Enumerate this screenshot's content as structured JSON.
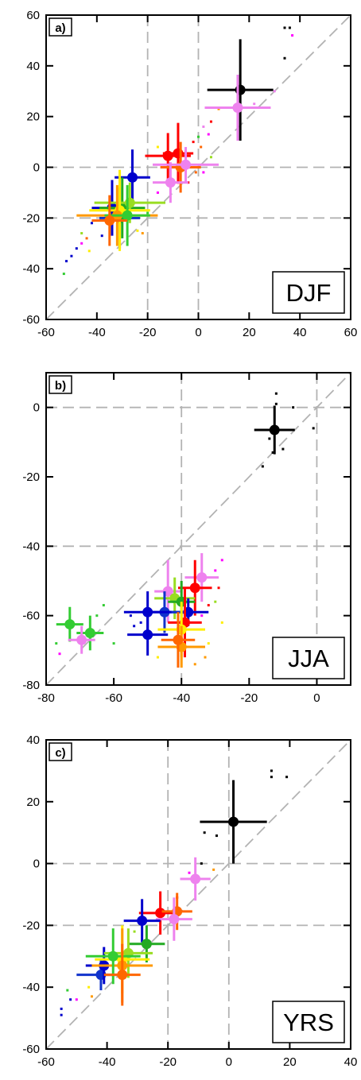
{
  "chart_data": [
    {
      "type": "scatter",
      "panel_label": "a)",
      "season": "DJF",
      "xlim": [
        -60,
        60
      ],
      "ylim": [
        -60,
        60
      ],
      "xticks": [
        -60,
        -40,
        -20,
        0,
        20,
        40,
        60
      ],
      "yticks": [
        -60,
        -40,
        -20,
        0,
        20,
        40,
        60
      ],
      "xtick_labels": [
        "-60",
        "-40",
        "-20",
        "0",
        "20",
        "40",
        "60"
      ],
      "ytick_labels": [
        "-60",
        "-40",
        "-20",
        "0",
        "20",
        "40",
        "60"
      ],
      "ref_x": [
        -20,
        0
      ],
      "ref_y": [
        -20,
        0
      ],
      "one_to_one_line": true,
      "means": [
        {
          "color": "#000000",
          "x": 16.5,
          "y": 30.5,
          "xerr": 13,
          "yerr": 20
        },
        {
          "color": "#ee82ee",
          "x": 15.5,
          "y": 23.5,
          "xerr": 13,
          "yerr": 13
        },
        {
          "color": "#ff0000",
          "x": -12,
          "y": 4.5,
          "xerr": 9,
          "yerr": 9
        },
        {
          "color": "#ff0000",
          "x": -8,
          "y": 5.5,
          "xerr": 6,
          "yerr": 12
        },
        {
          "color": "#ff6600",
          "x": -7,
          "y": 0,
          "xerr": 8,
          "yerr": 10
        },
        {
          "color": "#ee82ee",
          "x": -5,
          "y": 1,
          "xerr": 13,
          "yerr": 7
        },
        {
          "color": "#ee82ee",
          "x": -11,
          "y": -6,
          "xerr": 7,
          "yerr": 8
        },
        {
          "color": "#0000cc",
          "x": -26,
          "y": -4,
          "xerr": 7,
          "yerr": 11
        },
        {
          "color": "#0000cc",
          "x": -34,
          "y": -16,
          "xerr": 8,
          "yerr": 11
        },
        {
          "color": "#1133cc",
          "x": -31,
          "y": -20,
          "xerr": 8,
          "yerr": 12
        },
        {
          "color": "#22aa22",
          "x": -30,
          "y": -16,
          "xerr": 9,
          "yerr": 12
        },
        {
          "color": "#99dd22",
          "x": -27,
          "y": -14,
          "xerr": 14,
          "yerr": 8
        },
        {
          "color": "#ffee00",
          "x": -31,
          "y": -17,
          "xerr": 12,
          "yerr": 16
        },
        {
          "color": "#ff9900",
          "x": -32,
          "y": -19,
          "xerr": 16,
          "yerr": 12
        },
        {
          "color": "#33cc33",
          "x": -28,
          "y": -19,
          "xerr": 9,
          "yerr": 12
        },
        {
          "color": "#ff6600",
          "x": -35,
          "y": -21,
          "xerr": 7,
          "yerr": 10
        }
      ],
      "points": [
        {
          "color": "#000000",
          "x": 34,
          "y": 55
        },
        {
          "color": "#000000",
          "x": 36,
          "y": 55
        },
        {
          "color": "#000000",
          "x": 34,
          "y": 43
        },
        {
          "color": "#ff00ff",
          "x": 37,
          "y": 52
        },
        {
          "color": "#ee82ee",
          "x": 30,
          "y": 30
        },
        {
          "color": "#ee82ee",
          "x": 22,
          "y": 25
        },
        {
          "color": "#ff9900",
          "x": 8,
          "y": 23
        },
        {
          "color": "#ff0000",
          "x": 5,
          "y": 18
        },
        {
          "color": "#ee82ee",
          "x": 2,
          "y": 16
        },
        {
          "color": "#ff00ff",
          "x": 4,
          "y": 13
        },
        {
          "color": "#33cc33",
          "x": 0,
          "y": 12
        },
        {
          "color": "#ff6600",
          "x": 1,
          "y": 8
        },
        {
          "color": "#ff0000",
          "x": -2,
          "y": 10
        },
        {
          "color": "#99dd22",
          "x": 5,
          "y": 4
        },
        {
          "color": "#ffee00",
          "x": -16,
          "y": 8
        },
        {
          "color": "#ff00ff",
          "x": 2,
          "y": -2
        },
        {
          "color": "#0000cc",
          "x": -48,
          "y": -32
        },
        {
          "color": "#0000cc",
          "x": -52,
          "y": -37
        },
        {
          "color": "#33cc33",
          "x": -53,
          "y": -42
        },
        {
          "color": "#0000cc",
          "x": -50,
          "y": -35
        },
        {
          "color": "#ff00ff",
          "x": -46,
          "y": -30
        },
        {
          "color": "#ffee00",
          "x": -43,
          "y": -33
        },
        {
          "color": "#99dd22",
          "x": -46,
          "y": -26
        },
        {
          "color": "#ff6600",
          "x": -44,
          "y": -28
        },
        {
          "color": "#0000cc",
          "x": -42,
          "y": -22
        },
        {
          "color": "#ffee00",
          "x": -24,
          "y": -25
        },
        {
          "color": "#33cc33",
          "x": -20,
          "y": -18
        },
        {
          "color": "#ff9900",
          "x": -22,
          "y": -26
        },
        {
          "color": "#ff00ff",
          "x": -16,
          "y": -10
        },
        {
          "color": "#ff0000",
          "x": -4,
          "y": -6
        },
        {
          "color": "#ff6600",
          "x": -1,
          "y": -2
        },
        {
          "color": "#0000cc",
          "x": -38,
          "y": -27
        }
      ]
    },
    {
      "type": "scatter",
      "panel_label": "b)",
      "season": "JJA",
      "xlim": [
        -80,
        10
      ],
      "ylim": [
        -80,
        10
      ],
      "xticks": [
        -80,
        -60,
        -40,
        -20,
        0
      ],
      "yticks": [
        -80,
        -60,
        -40,
        -20,
        0
      ],
      "xtick_labels": [
        "-80",
        "-60",
        "-40",
        "-20",
        "0"
      ],
      "ytick_labels": [
        "-80",
        "-60",
        "-40",
        "-20",
        "0"
      ],
      "ref_x": [
        -40,
        0
      ],
      "ref_y": [
        -40,
        0
      ],
      "one_to_one_line": true,
      "means": [
        {
          "color": "#000000",
          "x": -12.5,
          "y": -6.5,
          "xerr": 6,
          "yerr": 7
        },
        {
          "color": "#ee82ee",
          "x": -34,
          "y": -49,
          "xerr": 5,
          "yerr": 7
        },
        {
          "color": "#ff0000",
          "x": -36,
          "y": -52,
          "xerr": 5,
          "yerr": 8
        },
        {
          "color": "#ee82ee",
          "x": -44,
          "y": -53,
          "xerr": 4,
          "yerr": 9
        },
        {
          "color": "#99dd22",
          "x": -42,
          "y": -55,
          "xerr": 6,
          "yerr": 6
        },
        {
          "color": "#22aa22",
          "x": -40,
          "y": -56,
          "xerr": 4,
          "yerr": 6
        },
        {
          "color": "#0000cc",
          "x": -38,
          "y": -59,
          "xerr": 6,
          "yerr": 4
        },
        {
          "color": "#1133cc",
          "x": -45,
          "y": -59,
          "xerr": 6,
          "yerr": 6
        },
        {
          "color": "#0000cc",
          "x": -50,
          "y": -59,
          "xerr": 7,
          "yerr": 6
        },
        {
          "color": "#0000cc",
          "x": -50,
          "y": -65.5,
          "xerr": 6,
          "yerr": 6
        },
        {
          "color": "#ff0000",
          "x": -39,
          "y": -62,
          "xerr": 5,
          "yerr": 10
        },
        {
          "color": "#ffee00",
          "x": -40,
          "y": -64,
          "xerr": 7,
          "yerr": 8
        },
        {
          "color": "#ff9900",
          "x": -40,
          "y": -69,
          "xerr": 7,
          "yerr": 6
        },
        {
          "color": "#ff6600",
          "x": -41,
          "y": -67,
          "xerr": 5,
          "yerr": 8
        },
        {
          "color": "#33cc33",
          "x": -73,
          "y": -62.5,
          "xerr": 4,
          "yerr": 5
        },
        {
          "color": "#33cc33",
          "x": -67,
          "y": -65,
          "xerr": 4,
          "yerr": 5
        },
        {
          "color": "#ee82ee",
          "x": -69.5,
          "y": -67,
          "xerr": 4,
          "yerr": 4
        }
      ],
      "points": [
        {
          "color": "#000000",
          "x": -12,
          "y": 4
        },
        {
          "color": "#000000",
          "x": -12,
          "y": 1
        },
        {
          "color": "#000000",
          "x": -7,
          "y": 0
        },
        {
          "color": "#000000",
          "x": -14,
          "y": -9
        },
        {
          "color": "#000000",
          "x": -10,
          "y": -12
        },
        {
          "color": "#000000",
          "x": -16,
          "y": -17
        },
        {
          "color": "#000000",
          "x": -1,
          "y": -6
        },
        {
          "color": "#000000",
          "x": -13,
          "y": -13
        },
        {
          "color": "#ff00ff",
          "x": -28,
          "y": -44
        },
        {
          "color": "#ff00ff",
          "x": -30,
          "y": -47
        },
        {
          "color": "#ff0000",
          "x": -29,
          "y": -52
        },
        {
          "color": "#99dd22",
          "x": -30,
          "y": -56
        },
        {
          "color": "#0000cc",
          "x": -55,
          "y": -60
        },
        {
          "color": "#0000cc",
          "x": -54,
          "y": -63
        },
        {
          "color": "#ffee00",
          "x": -32,
          "y": -68
        },
        {
          "color": "#ff9900",
          "x": -33,
          "y": -72
        },
        {
          "color": "#ffee00",
          "x": -28,
          "y": -62
        },
        {
          "color": "#33cc33",
          "x": -77,
          "y": -68
        },
        {
          "color": "#ff00ff",
          "x": -76,
          "y": -71
        },
        {
          "color": "#33cc33",
          "x": -65,
          "y": -60
        },
        {
          "color": "#33cc33",
          "x": -63,
          "y": -57
        },
        {
          "color": "#33cc33",
          "x": -60,
          "y": -68
        },
        {
          "color": "#ff00ff",
          "x": -34,
          "y": -60
        },
        {
          "color": "#ff0000",
          "x": -32,
          "y": -57
        },
        {
          "color": "#0000cc",
          "x": -52,
          "y": -62
        },
        {
          "color": "#ffee00",
          "x": -47,
          "y": -72
        },
        {
          "color": "#ff9900",
          "x": -36,
          "y": -74
        }
      ]
    },
    {
      "type": "scatter",
      "panel_label": "c)",
      "season": "YRS",
      "xlim": [
        -60,
        40
      ],
      "ylim": [
        -60,
        40
      ],
      "xticks": [
        -60,
        -40,
        -20,
        0,
        20,
        40
      ],
      "yticks": [
        -60,
        -40,
        -20,
        0,
        20,
        40
      ],
      "xtick_labels": [
        "-60",
        "-40",
        "-20",
        "0",
        "20",
        "40"
      ],
      "ytick_labels": [
        "-60",
        "-40",
        "-20",
        "0",
        "20",
        "40"
      ],
      "ref_x": [
        -20,
        0
      ],
      "ref_y": [
        -20,
        0
      ],
      "one_to_one_line": true,
      "means": [
        {
          "color": "#000000",
          "x": 1.5,
          "y": 13.5,
          "xerr": 11,
          "yerr": 13.5
        },
        {
          "color": "#ee82ee",
          "x": -11,
          "y": -5,
          "xerr": 5,
          "yerr": 7
        },
        {
          "color": "#ff0000",
          "x": -22.5,
          "y": -16,
          "xerr": 7,
          "yerr": 7
        },
        {
          "color": "#ff6600",
          "x": -17,
          "y": -15.5,
          "xerr": 5,
          "yerr": 6
        },
        {
          "color": "#ee82ee",
          "x": -18,
          "y": -18,
          "xerr": 6,
          "yerr": 7
        },
        {
          "color": "#0000cc",
          "x": -28.5,
          "y": -18.5,
          "xerr": 6,
          "yerr": 7
        },
        {
          "color": "#1133cc",
          "x": -42,
          "y": -36,
          "xerr": 8,
          "yerr": 5
        },
        {
          "color": "#0000cc",
          "x": -41,
          "y": -33,
          "xerr": 6,
          "yerr": 6
        },
        {
          "color": "#22aa22",
          "x": -27,
          "y": -26,
          "xerr": 6,
          "yerr": 6
        },
        {
          "color": "#99dd22",
          "x": -33,
          "y": -29,
          "xerr": 8,
          "yerr": 8
        },
        {
          "color": "#ffee00",
          "x": -35,
          "y": -31,
          "xerr": 9,
          "yerr": 11
        },
        {
          "color": "#ff9900",
          "x": -35,
          "y": -33,
          "xerr": 10,
          "yerr": 12
        },
        {
          "color": "#33cc33",
          "x": -38,
          "y": -30,
          "xerr": 9,
          "yerr": 9
        },
        {
          "color": "#ff6600",
          "x": -35,
          "y": -36,
          "xerr": 6,
          "yerr": 10
        }
      ],
      "points": [
        {
          "color": "#000000",
          "x": 14,
          "y": 30
        },
        {
          "color": "#000000",
          "x": 14,
          "y": 28
        },
        {
          "color": "#000000",
          "x": 19,
          "y": 28
        },
        {
          "color": "#000000",
          "x": -8,
          "y": 10
        },
        {
          "color": "#000000",
          "x": -4,
          "y": 9
        },
        {
          "color": "#000000",
          "x": -9,
          "y": 0
        },
        {
          "color": "#ff9900",
          "x": -5,
          "y": -2
        },
        {
          "color": "#0000cc",
          "x": -52,
          "y": -44
        },
        {
          "color": "#0000cc",
          "x": -55,
          "y": -47
        },
        {
          "color": "#33cc33",
          "x": -53,
          "y": -41
        },
        {
          "color": "#ff00ff",
          "x": -50,
          "y": -44
        },
        {
          "color": "#ff9900",
          "x": -45,
          "y": -43
        },
        {
          "color": "#0000cc",
          "x": -55,
          "y": -49
        },
        {
          "color": "#ffee00",
          "x": -46,
          "y": -40
        },
        {
          "color": "#ff0000",
          "x": -17,
          "y": -11
        },
        {
          "color": "#ff00ff",
          "x": -13,
          "y": -3
        },
        {
          "color": "#99dd22",
          "x": -31,
          "y": -22
        }
      ]
    }
  ]
}
